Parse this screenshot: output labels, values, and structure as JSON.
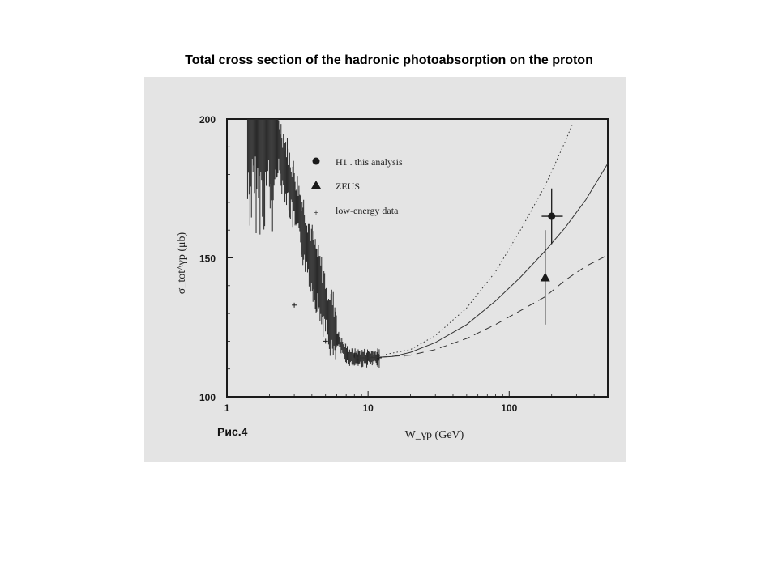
{
  "title": "Total cross section of the hadronic photoabsorption on the proton",
  "figure_label": "Рис.4",
  "colors": {
    "panel": "#e4e4e4",
    "ink": "#1a1a1a"
  },
  "chart_data": {
    "type": "scatter",
    "xlabel": "W_γp (GeV)",
    "ylabel": "σ_tot^γp (μb)",
    "x_scale": "log",
    "xlim": [
      1,
      500
    ],
    "ylim": [
      100,
      200
    ],
    "x_ticks": [
      "1",
      "10",
      "100"
    ],
    "y_ticks": [
      "100",
      "150",
      "200"
    ],
    "legend": {
      "placement": "top-left",
      "entries": [
        {
          "marker": "circle",
          "label": "H1 . this analysis"
        },
        {
          "marker": "triangle",
          "label": "ZEUS"
        },
        {
          "marker": "plus",
          "label": "low-energy data"
        }
      ]
    },
    "series": [
      {
        "name": "H1 . this analysis",
        "marker": "circle",
        "points": [
          {
            "x": 200,
            "y": 165,
            "y_low": 155,
            "y_high": 175,
            "x_low": 170,
            "x_high": 240
          }
        ]
      },
      {
        "name": "ZEUS",
        "marker": "triangle",
        "points": [
          {
            "x": 180,
            "y": 143,
            "y_low": 126,
            "y_high": 160
          }
        ]
      },
      {
        "name": "low-energy data",
        "marker": "plus",
        "points": [
          {
            "x": 3,
            "y": 133
          },
          {
            "x": 5,
            "y": 120
          },
          {
            "x": 8,
            "y": 115
          },
          {
            "x": 12,
            "y": 114
          },
          {
            "x": 18,
            "y": 115
          }
        ]
      }
    ],
    "curves": [
      {
        "style": "solid",
        "points": [
          [
            8,
            114
          ],
          [
            10,
            114
          ],
          [
            15,
            114.5
          ],
          [
            20,
            116
          ],
          [
            30,
            119.5
          ],
          [
            50,
            126
          ],
          [
            80,
            134.5
          ],
          [
            120,
            143
          ],
          [
            180,
            152.5
          ],
          [
            250,
            161
          ],
          [
            350,
            171
          ],
          [
            500,
            184
          ]
        ]
      },
      {
        "style": "dotted",
        "points": [
          [
            10,
            114
          ],
          [
            20,
            117
          ],
          [
            30,
            122
          ],
          [
            50,
            132
          ],
          [
            80,
            145
          ],
          [
            120,
            160
          ],
          [
            180,
            176
          ],
          [
            250,
            192
          ],
          [
            280,
            198
          ]
        ]
      },
      {
        "style": "dashed",
        "points": [
          [
            10,
            114
          ],
          [
            20,
            115
          ],
          [
            30,
            117
          ],
          [
            50,
            121
          ],
          [
            80,
            126
          ],
          [
            120,
            131
          ],
          [
            180,
            136
          ],
          [
            250,
            142
          ],
          [
            350,
            147
          ],
          [
            500,
            151
          ]
        ]
      }
    ]
  }
}
